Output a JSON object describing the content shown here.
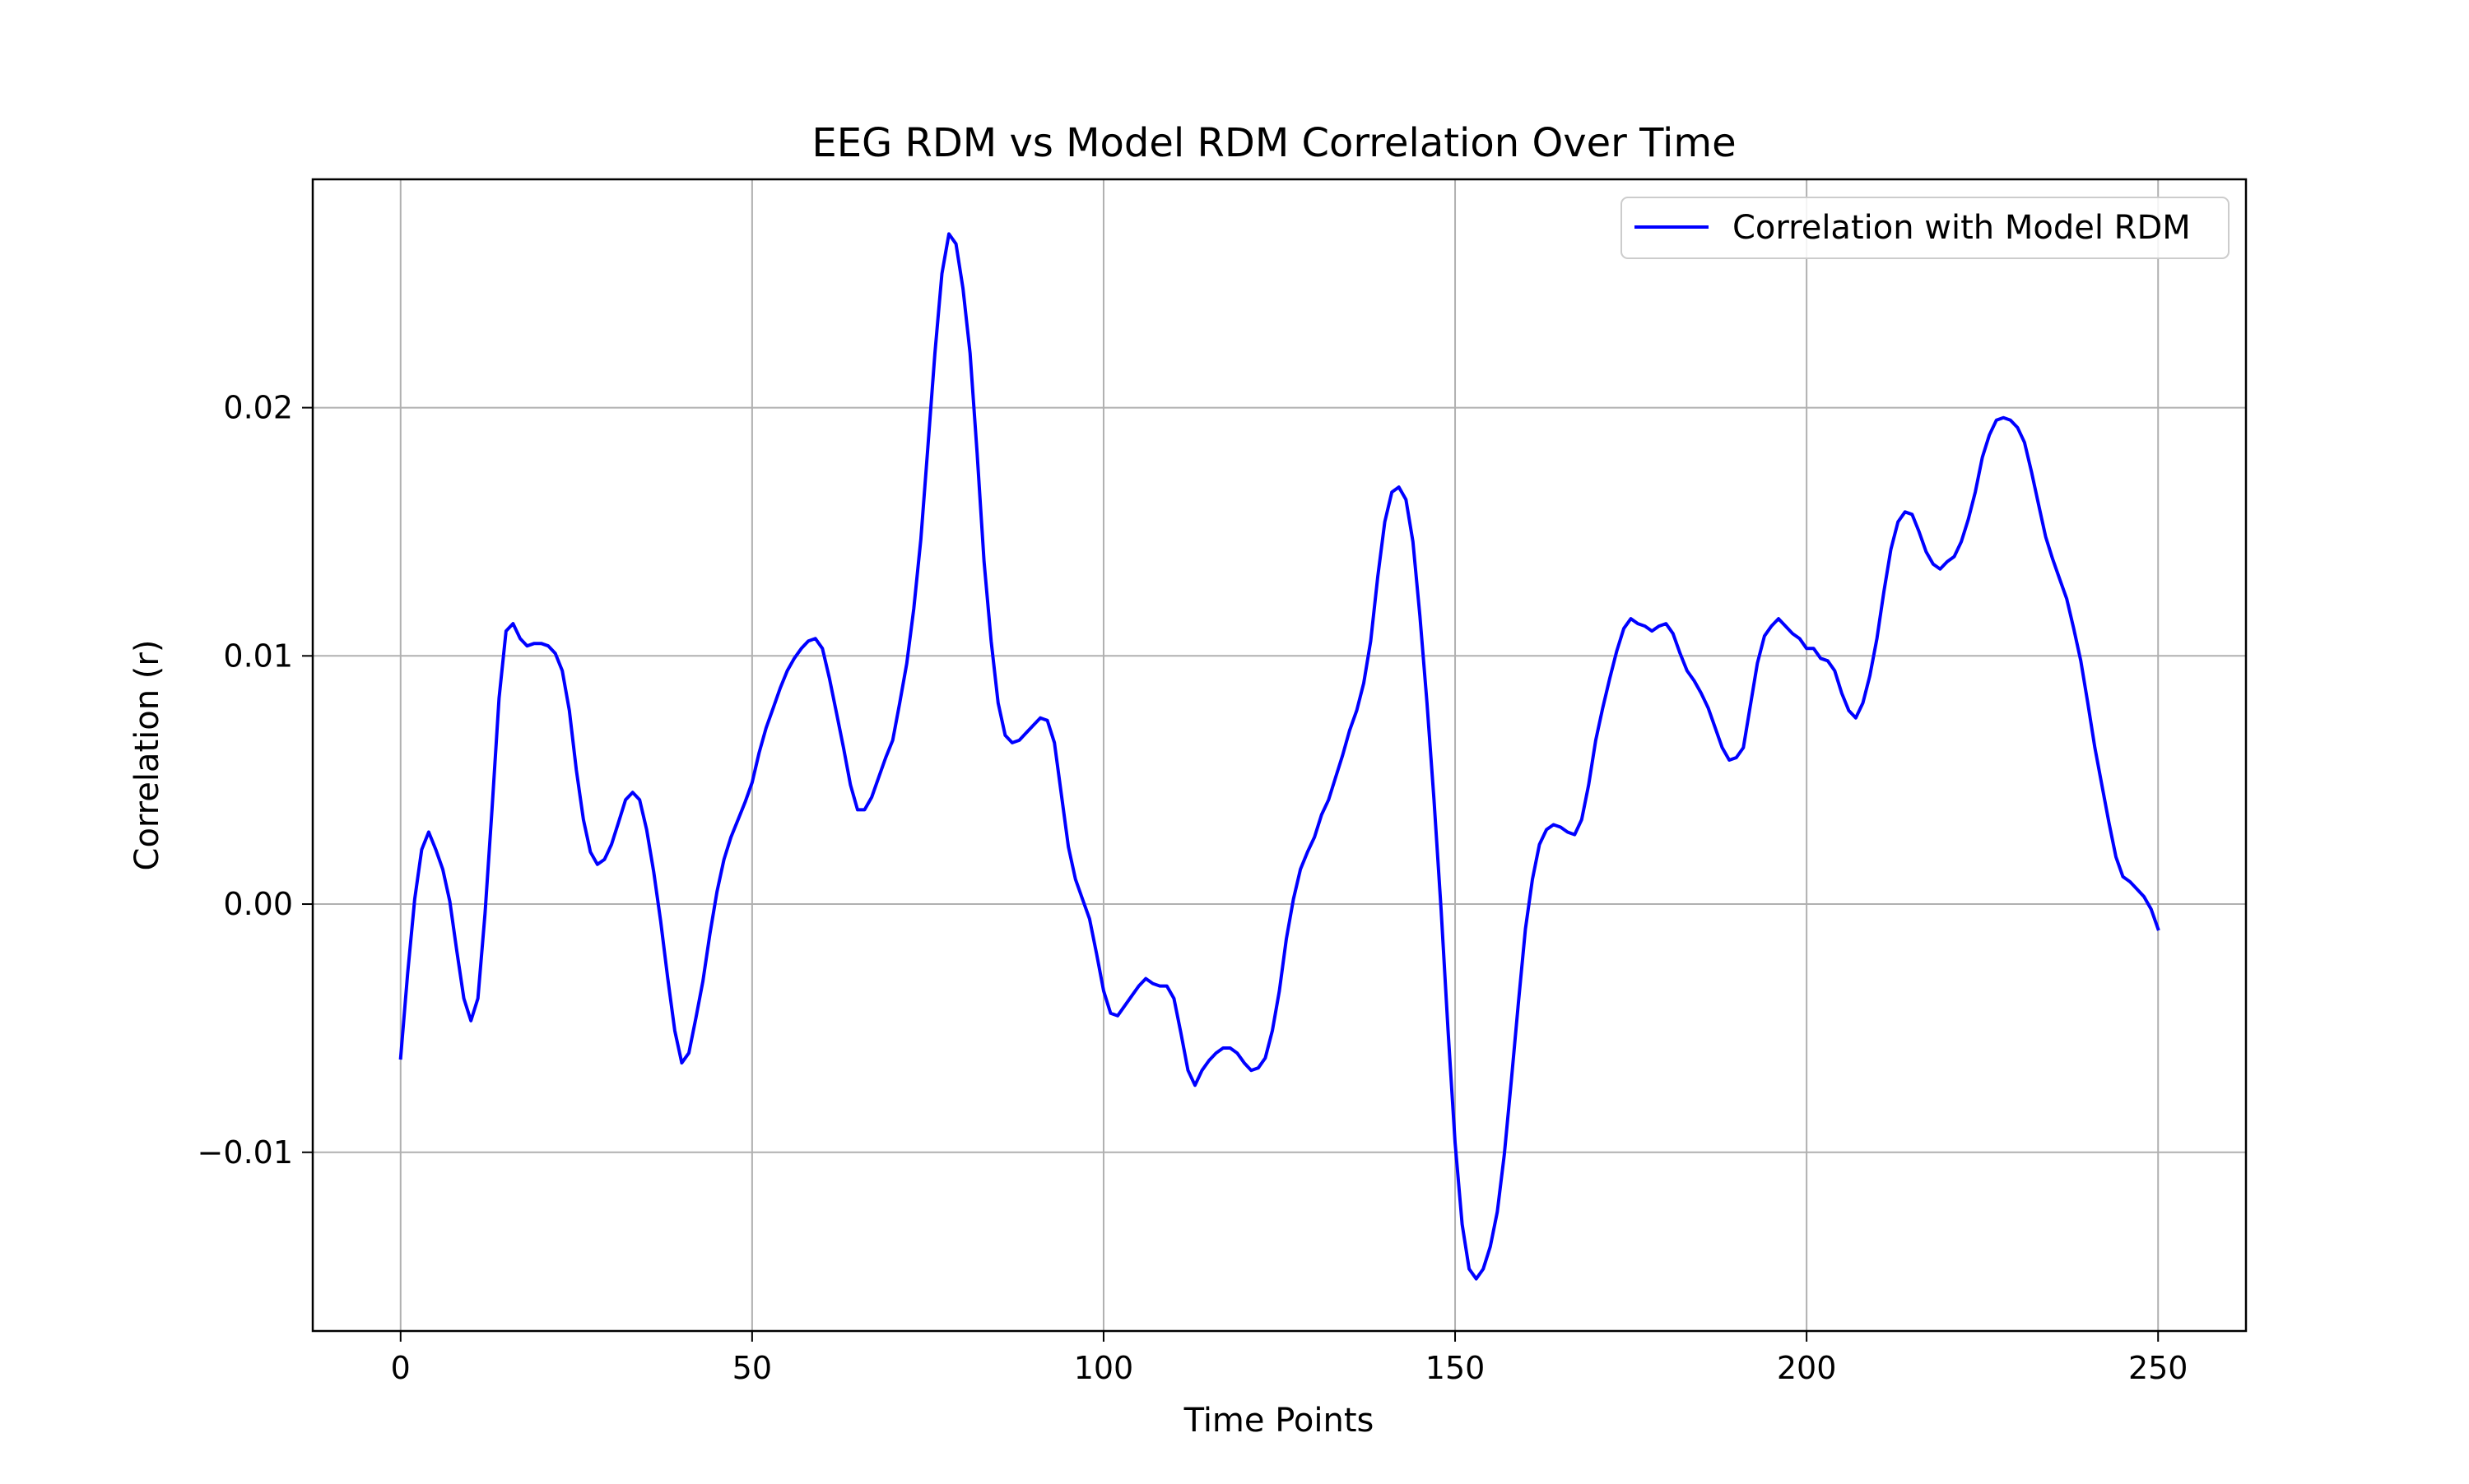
{
  "chart_data": {
    "type": "line",
    "title": "EEG RDM vs Model RDM Correlation Over Time",
    "xlabel": "Time Points",
    "ylabel": "Correlation (r)",
    "xlim": [
      -12.5,
      262.5
    ],
    "ylim": [
      -0.0172,
      0.0292
    ],
    "grid": true,
    "legend_position": "top-right",
    "x_ticks": [
      0,
      50,
      100,
      150,
      200,
      250
    ],
    "x_tick_labels": [
      "0",
      "50",
      "100",
      "150",
      "200",
      "250"
    ],
    "y_ticks": [
      -0.01,
      0.0,
      0.01,
      0.02
    ],
    "y_tick_labels": [
      "−0.01",
      "0.00",
      "0.01",
      "0.02"
    ],
    "series": [
      {
        "name": "Correlation with Model RDM",
        "color": "#0000ff",
        "x": [
          0,
          1,
          2,
          3,
          4,
          5,
          6,
          7,
          8,
          9,
          10,
          11,
          12,
          13,
          14,
          15,
          16,
          17,
          18,
          19,
          20,
          21,
          22,
          23,
          24,
          25,
          26,
          27,
          28,
          29,
          30,
          31,
          32,
          33,
          34,
          35,
          36,
          37,
          38,
          39,
          40,
          41,
          42,
          43,
          44,
          45,
          46,
          47,
          48,
          49,
          50,
          51,
          52,
          53,
          54,
          55,
          56,
          57,
          58,
          59,
          60,
          61,
          62,
          63,
          64,
          65,
          66,
          67,
          68,
          69,
          70,
          71,
          72,
          73,
          74,
          75,
          76,
          77,
          78,
          79,
          80,
          81,
          82,
          83,
          84,
          85,
          86,
          87,
          88,
          89,
          90,
          91,
          92,
          93,
          94,
          95,
          96,
          97,
          98,
          99,
          100,
          101,
          102,
          103,
          104,
          105,
          106,
          107,
          108,
          109,
          110,
          111,
          112,
          113,
          114,
          115,
          116,
          117,
          118,
          119,
          120,
          121,
          122,
          123,
          124,
          125,
          126,
          127,
          128,
          129,
          130,
          131,
          132,
          133,
          134,
          135,
          136,
          137,
          138,
          139,
          140,
          141,
          142,
          143,
          144,
          145,
          146,
          147,
          148,
          149,
          150,
          151,
          152,
          153,
          154,
          155,
          156,
          157,
          158,
          159,
          160,
          161,
          162,
          163,
          164,
          165,
          166,
          167,
          168,
          169,
          170,
          171,
          172,
          173,
          174,
          175,
          176,
          177,
          178,
          179,
          180,
          181,
          182,
          183,
          184,
          185,
          186,
          187,
          188,
          189,
          190,
          191,
          192,
          193,
          194,
          195,
          196,
          197,
          198,
          199,
          200,
          201,
          202,
          203,
          204,
          205,
          206,
          207,
          208,
          209,
          210,
          211,
          212,
          213,
          214,
          215,
          216,
          217,
          218,
          219,
          220,
          221,
          222,
          223,
          224,
          225,
          226,
          227,
          228,
          229,
          230,
          231,
          232,
          233,
          234,
          235,
          236,
          237,
          238,
          239,
          240,
          241,
          242,
          243,
          244,
          245,
          246,
          247,
          248,
          249,
          250
        ],
        "y": [
          -0.0062,
          -0.0028,
          0.0002,
          0.0022,
          0.0029,
          0.0022,
          0.0014,
          0.0001,
          -0.0019,
          -0.0038,
          -0.0047,
          -0.0038,
          -0.0004,
          0.0038,
          0.0083,
          0.011,
          0.0113,
          0.0107,
          0.0104,
          0.0105,
          0.0105,
          0.0104,
          0.0101,
          0.0094,
          0.0078,
          0.0054,
          0.0034,
          0.0021,
          0.0016,
          0.0018,
          0.0024,
          0.0033,
          0.0042,
          0.0045,
          0.0042,
          0.003,
          0.0013,
          -0.0007,
          -0.003,
          -0.0051,
          -0.0064,
          -0.006,
          -0.0046,
          -0.0031,
          -0.0012,
          0.0005,
          0.0018,
          0.0027,
          0.0034,
          0.0041,
          0.0049,
          0.0061,
          0.0071,
          0.0079,
          0.0087,
          0.0094,
          0.0099,
          0.0103,
          0.0106,
          0.0107,
          0.0103,
          0.0091,
          0.0077,
          0.0063,
          0.0048,
          0.0038,
          0.0038,
          0.0043,
          0.0051,
          0.0059,
          0.0066,
          0.0081,
          0.0097,
          0.0119,
          0.0147,
          0.0184,
          0.0222,
          0.0254,
          0.027,
          0.0266,
          0.0248,
          0.0222,
          0.0182,
          0.0138,
          0.0106,
          0.0081,
          0.0068,
          0.0065,
          0.0066,
          0.0069,
          0.0072,
          0.0075,
          0.0074,
          0.0065,
          0.0044,
          0.0023,
          0.001,
          0.0002,
          -0.0006,
          -0.002,
          -0.0035,
          -0.0044,
          -0.0045,
          -0.0041,
          -0.0037,
          -0.0033,
          -0.003,
          -0.0032,
          -0.0033,
          -0.0033,
          -0.0038,
          -0.0052,
          -0.0067,
          -0.0073,
          -0.0067,
          -0.0063,
          -0.006,
          -0.0058,
          -0.0058,
          -0.006,
          -0.0064,
          -0.0067,
          -0.0066,
          -0.0062,
          -0.0051,
          -0.0035,
          -0.0014,
          0.0002,
          0.0014,
          0.0021,
          0.0027,
          0.0036,
          0.0042,
          0.0051,
          0.006,
          0.007,
          0.0078,
          0.0089,
          0.0106,
          0.0132,
          0.0154,
          0.0166,
          0.0168,
          0.0163,
          0.0146,
          0.0116,
          0.0081,
          0.0042,
          -0.0002,
          -0.0051,
          -0.0096,
          -0.0129,
          -0.0147,
          -0.0151,
          -0.0147,
          -0.0138,
          -0.0124,
          -0.0101,
          -0.0071,
          -0.004,
          -0.001,
          0.001,
          0.0024,
          0.003,
          0.0032,
          0.0031,
          0.0029,
          0.0028,
          0.0034,
          0.0048,
          0.0066,
          0.0079,
          0.0091,
          0.0102,
          0.0111,
          0.0115,
          0.0113,
          0.0112,
          0.011,
          0.0112,
          0.0113,
          0.0109,
          0.0101,
          0.0094,
          0.009,
          0.0085,
          0.0079,
          0.0071,
          0.0063,
          0.0058,
          0.0059,
          0.0063,
          0.008,
          0.0097,
          0.0108,
          0.0112,
          0.0115,
          0.0112,
          0.0109,
          0.0107,
          0.0103,
          0.0103,
          0.0099,
          0.0098,
          0.0094,
          0.0085,
          0.0078,
          0.0075,
          0.0081,
          0.0092,
          0.0107,
          0.0126,
          0.0143,
          0.0154,
          0.0158,
          0.0157,
          0.015,
          0.0142,
          0.0137,
          0.0135,
          0.0138,
          0.014,
          0.0146,
          0.0155,
          0.0166,
          0.018,
          0.0189,
          0.0195,
          0.0196,
          0.0195,
          0.0192,
          0.0186,
          0.0174,
          0.0161,
          0.0148,
          0.0139,
          0.0131,
          0.0123,
          0.0111,
          0.0098,
          0.0081,
          0.0063,
          0.0048,
          0.0033,
          0.0019,
          0.0011,
          0.0009,
          0.0006,
          0.0003,
          -0.0002,
          -0.001
        ]
      }
    ]
  }
}
